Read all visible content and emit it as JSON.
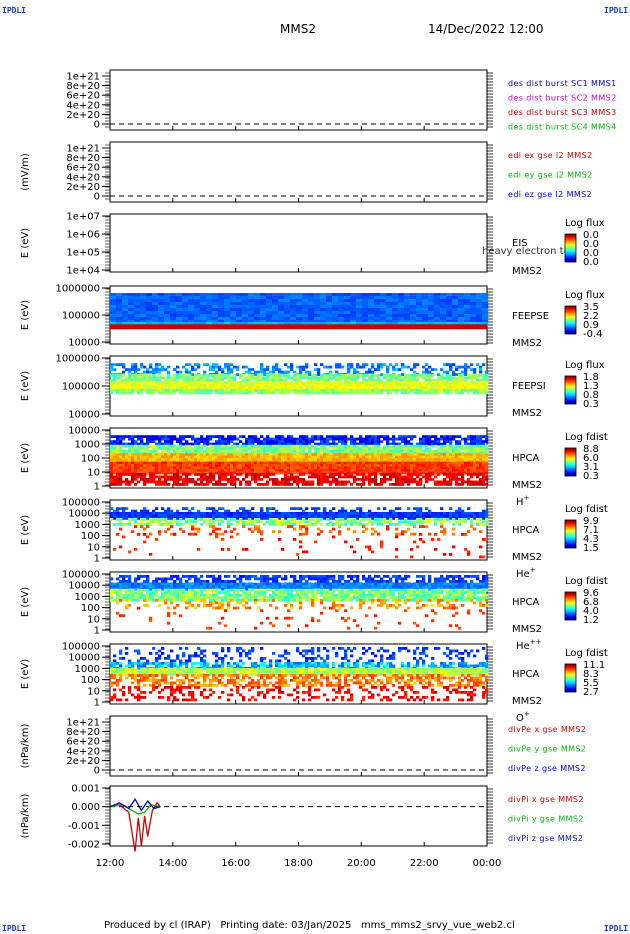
{
  "page": {
    "title": "MMS2",
    "date": "14/Dec/2022 12:00",
    "footer": "Produced by cl (IRAP)   Printing date: 03/Jan/2025   mms_mms2_srvy_vue_web2.cl",
    "corner_text": "IPDLI"
  },
  "chart_data": {
    "type": "heatmap",
    "x_ticks": [
      "12:00",
      "14:00",
      "16:00",
      "18:00",
      "20:00",
      "22:00",
      "00:00"
    ],
    "panels": [
      {
        "kind": "line",
        "ylabel": "",
        "yticks": [
          "1e+21",
          "8e+20",
          "6e+20",
          "4e+20",
          "2e+20",
          "0"
        ],
        "legend": [
          {
            "text": "des dist burst SC1 MMS1",
            "color": "#0000cc"
          },
          {
            "text": "des dist burst SC2 MMS2",
            "color": "#cc00cc"
          },
          {
            "text": "des dist burst SC3 MMS3",
            "color": "#cc0000"
          },
          {
            "text": "des dist burst SC4 MMS4",
            "color": "#00bb00"
          }
        ]
      },
      {
        "kind": "line",
        "ylabel": "(mV/m)",
        "yticks": [
          "1e+21",
          "8e+20",
          "6e+20",
          "4e+20",
          "2e+20",
          "0"
        ],
        "legend": [
          {
            "text": "edi ex gse l2 MMS2",
            "color": "#cc0000"
          },
          {
            "text": "edi ey gse l2 MMS2",
            "color": "#00bb00"
          },
          {
            "text": "edi ez gse l2 MMS2",
            "color": "#0000cc"
          }
        ]
      },
      {
        "kind": "spec",
        "ylabel": "E (eV)",
        "yticks": [
          "1e+07",
          "1e+06",
          "1e+05",
          "1e+04"
        ],
        "instrument": "EIS",
        "extra": "heavy electron to",
        "sc": "MMS2",
        "species": "",
        "cbar_title": "Log flux",
        "cbar_ticks": [
          "0.0",
          "0.0",
          "0.0",
          "0.0"
        ],
        "pattern": "empty"
      },
      {
        "kind": "spec",
        "ylabel": "E (eV)",
        "yticks": [
          "1000000",
          "100000",
          "10000"
        ],
        "instrument": "FEEPSE",
        "sc": "MMS2",
        "species": "",
        "cbar_title": "Log flux",
        "cbar_ticks": [
          "3.5",
          "2.2",
          "0.9",
          "-0.4"
        ],
        "pattern": "feepse"
      },
      {
        "kind": "spec",
        "ylabel": "E (eV)",
        "yticks": [
          "1000000",
          "100000",
          "10000"
        ],
        "instrument": "FEEPSI",
        "sc": "MMS2",
        "species": "",
        "cbar_title": "Log flux",
        "cbar_ticks": [
          "1.8",
          "1.3",
          "0.8",
          "0.3"
        ],
        "pattern": "feepsi"
      },
      {
        "kind": "spec",
        "ylabel": "E (eV)",
        "yticks": [
          "10000",
          "1000",
          "100",
          "10",
          "1"
        ],
        "instrument": "HPCA",
        "sc": "MMS2",
        "species": "H",
        "species_sup": "+",
        "cbar_title": "Log fdist",
        "cbar_ticks": [
          "8.8",
          "6.0",
          "3.1",
          "0.3"
        ],
        "pattern": "hplus"
      },
      {
        "kind": "spec",
        "ylabel": "E (eV)",
        "yticks": [
          "100000",
          "10000",
          "1000",
          "100",
          "10",
          "1"
        ],
        "instrument": "HPCA",
        "sc": "MMS2",
        "species": "He",
        "species_sup": "+",
        "cbar_title": "Log fdist",
        "cbar_ticks": [
          "9.9",
          "7.1",
          "4.3",
          "1.5"
        ],
        "pattern": "heplus"
      },
      {
        "kind": "spec",
        "ylabel": "E (eV)",
        "yticks": [
          "100000",
          "10000",
          "1000",
          "100",
          "10",
          "1"
        ],
        "instrument": "HPCA",
        "sc": "MMS2",
        "species": "He",
        "species_sup": "++",
        "cbar_title": "Log fdist",
        "cbar_ticks": [
          "9.6",
          "6.8",
          "4.0",
          "1.2"
        ],
        "pattern": "heplusplus"
      },
      {
        "kind": "spec",
        "ylabel": "E (eV)",
        "yticks": [
          "100000",
          "10000",
          "1000",
          "100",
          "10",
          "1"
        ],
        "instrument": "HPCA",
        "sc": "MMS2",
        "species": "O",
        "species_sup": "+",
        "cbar_title": "Log fdist",
        "cbar_ticks": [
          "11.1",
          "8.3",
          "5.5",
          "2.7"
        ],
        "pattern": "oplus"
      },
      {
        "kind": "line",
        "ylabel": "(nPa/km)",
        "yticks": [
          "1e+21",
          "8e+20",
          "6e+20",
          "4e+20",
          "2e+20",
          "0"
        ],
        "legend": [
          {
            "text": "divPe x gse MMS2",
            "color": "#cc0000"
          },
          {
            "text": "divPe y gse MMS2",
            "color": "#00bb00"
          },
          {
            "text": "divPe z gse MMS2",
            "color": "#0000cc"
          }
        ]
      },
      {
        "kind": "line",
        "ylabel": "(nPa/km)",
        "yticks": [
          "0.001",
          "0.000",
          "-0.001",
          "-0.002"
        ],
        "legend": [
          {
            "text": "divPi x gse MMS2",
            "color": "#cc0000"
          },
          {
            "text": "divPi y gse MMS2",
            "color": "#00bb00"
          },
          {
            "text": "divPi z gse MMS2",
            "color": "#0000cc"
          }
        ],
        "series": [
          {
            "name": "divPi x gse MMS2",
            "color": "#cc0000",
            "x": [
              12.0,
              12.3,
              12.6,
              12.8,
              12.9,
              13.0,
              13.1,
              13.2,
              13.35,
              13.5,
              13.6
            ],
            "y": [
              0.0,
              0.0001,
              -0.0003,
              -0.0024,
              -0.0006,
              -0.0021,
              -0.0005,
              -0.0016,
              -0.0002,
              0.0002,
              0.0
            ]
          },
          {
            "name": "divPi y gse MMS2",
            "color": "#00bb00",
            "x": [
              12.0,
              12.4,
              12.7,
              12.9,
              13.1,
              13.3,
              13.6
            ],
            "y": [
              0.0,
              0.0001,
              -0.0002,
              -0.0004,
              -0.0003,
              0.0001,
              0.0
            ]
          },
          {
            "name": "divPi z gse MMS2",
            "color": "#0000cc",
            "x": [
              12.0,
              12.3,
              12.6,
              12.8,
              13.0,
              13.2,
              13.4,
              13.6
            ],
            "y": [
              0.0,
              0.0002,
              -0.0001,
              0.0004,
              -0.0002,
              0.0003,
              -0.0001,
              0.0
            ]
          }
        ]
      }
    ]
  }
}
